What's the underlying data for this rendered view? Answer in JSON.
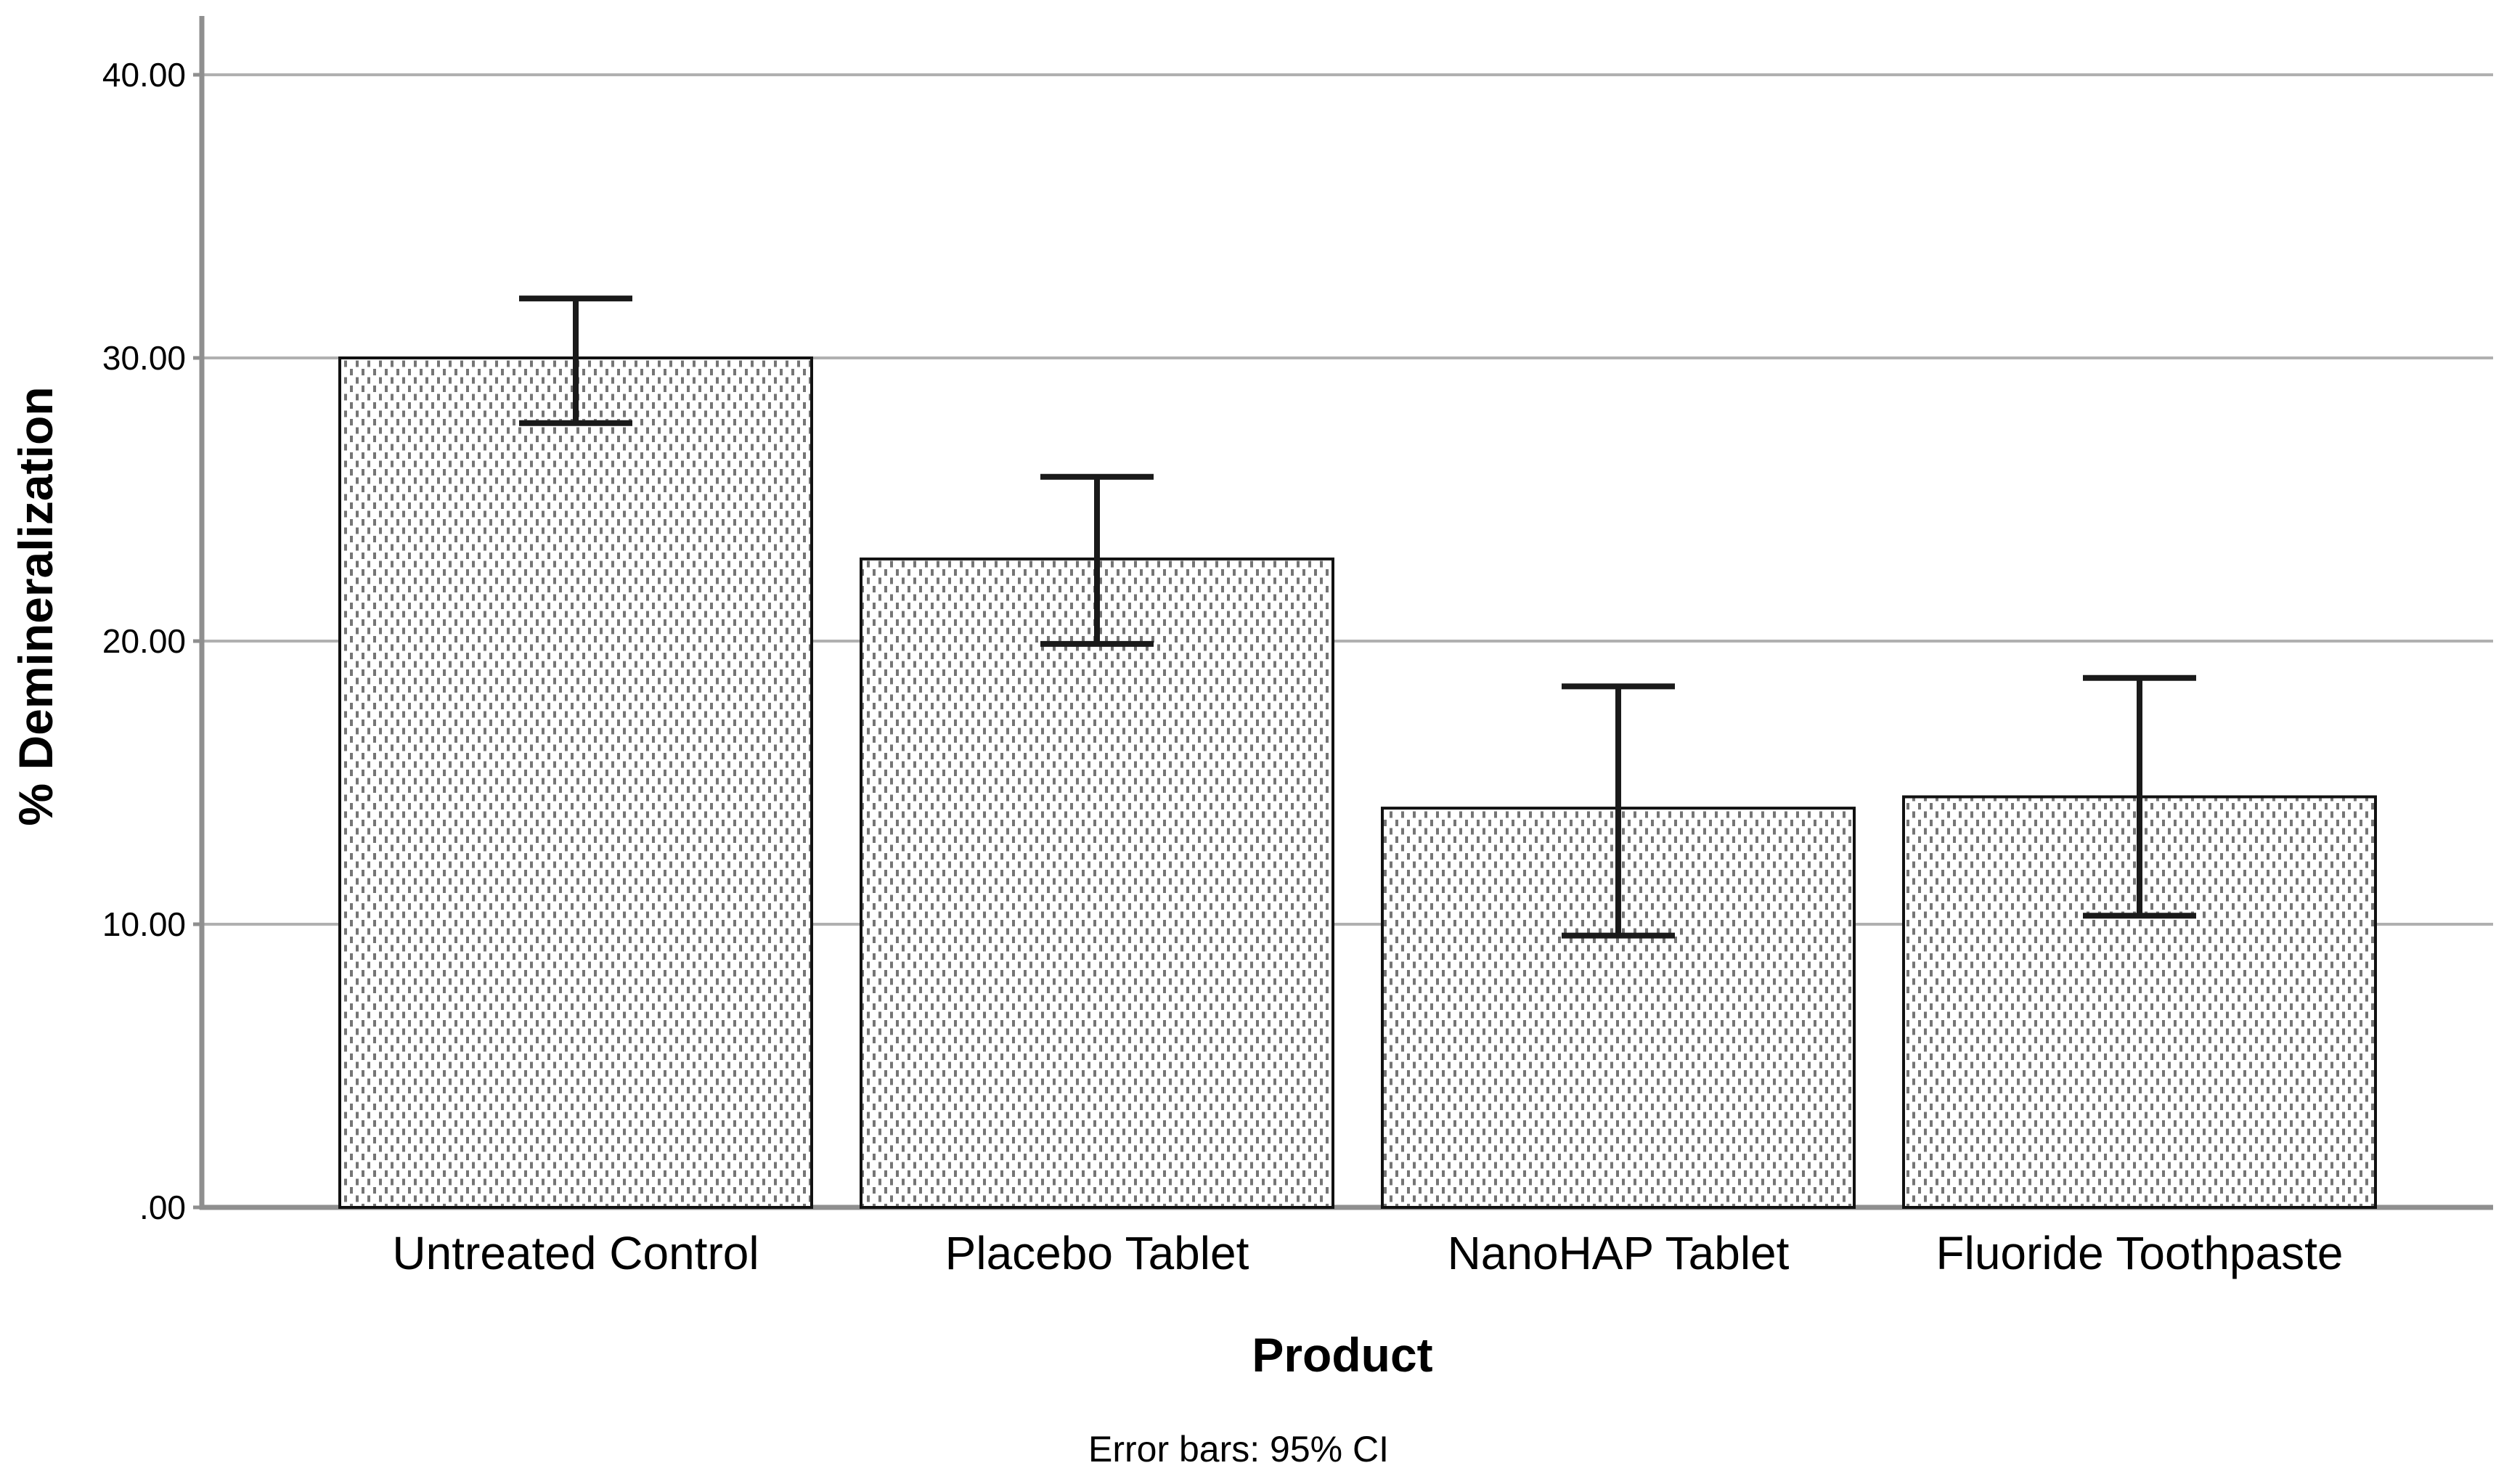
{
  "chart_data": {
    "type": "bar",
    "title": "",
    "xlabel": "Product",
    "ylabel": "% Demineralization",
    "footnote": "Error bars: 95% CI",
    "categories": [
      "Untreated Control",
      "Placebo Tablet",
      "NanoHAP Tablet",
      "Fluoride Toothpaste"
    ],
    "values": [
      30.0,
      22.9,
      14.1,
      14.5
    ],
    "error_bars": {
      "kind": "95% CI",
      "lower": [
        27.7,
        19.9,
        9.6,
        10.3
      ],
      "upper": [
        32.1,
        25.8,
        18.4,
        18.7
      ]
    },
    "y_ticks": [
      {
        "value": 0,
        "label": ".00"
      },
      {
        "value": 10,
        "label": "10.00"
      },
      {
        "value": 20,
        "label": "20.00"
      },
      {
        "value": 30,
        "label": "30.00"
      },
      {
        "value": 40,
        "label": "40.00"
      }
    ],
    "ylim": [
      0,
      42
    ],
    "grid": "horizontal",
    "legend_position": "none",
    "bar_style": "white fill with gray dashed dot pattern, black border",
    "colors": {
      "background": "#ffffff",
      "grid": "#b0b0b0",
      "axis": "#8f8f8f",
      "bar_border": "#111111",
      "bar_pattern_dash": "#757575",
      "bar_background": "#ffffff",
      "error_bar": "#1a1a1a",
      "text": "#000000"
    }
  }
}
